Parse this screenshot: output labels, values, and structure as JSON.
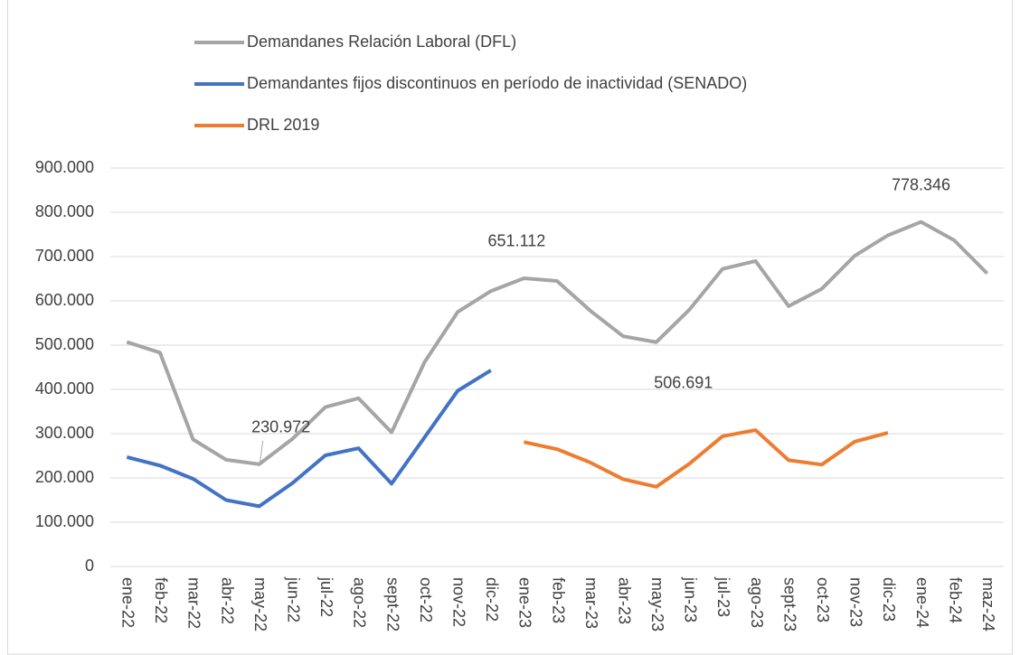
{
  "chart_data": {
    "type": "line",
    "categories": [
      "ene-22",
      "feb-22",
      "mar-22",
      "abr-22",
      "may-22",
      "jun-22",
      "jul-22",
      "ago-22",
      "sept-22",
      "oct-22",
      "nov-22",
      "dic-22",
      "ene-23",
      "feb-23",
      "mar-23",
      "abr-23",
      "may-23",
      "jun-23",
      "jul-23",
      "ago-23",
      "sept-23",
      "oct-23",
      "nov-23",
      "dic-23",
      "ene-24",
      "feb-24",
      "maz-24"
    ],
    "series": [
      {
        "name": "Demandanes Relación Laboral (DFL)",
        "color": "#a5a5a5",
        "values": [
          507000,
          483000,
          287000,
          241000,
          230972,
          288000,
          360000,
          380000,
          303000,
          462000,
          575000,
          622000,
          651112,
          645000,
          578000,
          520000,
          506691,
          580000,
          672000,
          690000,
          588000,
          627000,
          702000,
          748000,
          778346,
          737000,
          662000
        ],
        "value_labels": [
          null,
          null,
          null,
          null,
          "230.972",
          null,
          null,
          null,
          null,
          null,
          null,
          null,
          "651.112",
          null,
          null,
          null,
          "506.691",
          null,
          null,
          null,
          null,
          null,
          null,
          null,
          "778.346",
          null,
          null
        ]
      },
      {
        "name": "Demandantes fijos discontinuos en período de inactividad (SENADO)",
        "color": "#4472c4",
        "values": [
          247000,
          228000,
          198000,
          150000,
          136000,
          188000,
          251000,
          267000,
          187000,
          292000,
          397000,
          443000,
          null,
          null,
          null,
          null,
          null,
          null,
          null,
          null,
          null,
          null,
          null,
          null,
          null,
          null,
          null
        ]
      },
      {
        "name": "DRL 2019",
        "color": "#ed7d31",
        "values": [
          null,
          null,
          null,
          null,
          null,
          null,
          null,
          null,
          null,
          null,
          null,
          null,
          281000,
          265000,
          235000,
          197000,
          180000,
          232000,
          294000,
          308000,
          240000,
          230000,
          282000,
          302000,
          null,
          null,
          null
        ]
      }
    ],
    "ylim": [
      0,
      900000
    ],
    "yticks": [
      0,
      {
        "value": 100000,
        "label": "100.000"
      },
      {
        "value": 200000,
        "label": "200.000"
      },
      {
        "value": 300000,
        "label": "300.000"
      },
      {
        "value": 400000,
        "label": "400.000"
      },
      {
        "value": 500000,
        "label": "500.000"
      },
      {
        "value": 600000,
        "label": "600.000"
      },
      {
        "value": 700000,
        "label": "700.000"
      },
      {
        "value": 800000,
        "label": "800.000"
      },
      {
        "value": 900000,
        "label": "900.000"
      }
    ],
    "grid": true
  }
}
